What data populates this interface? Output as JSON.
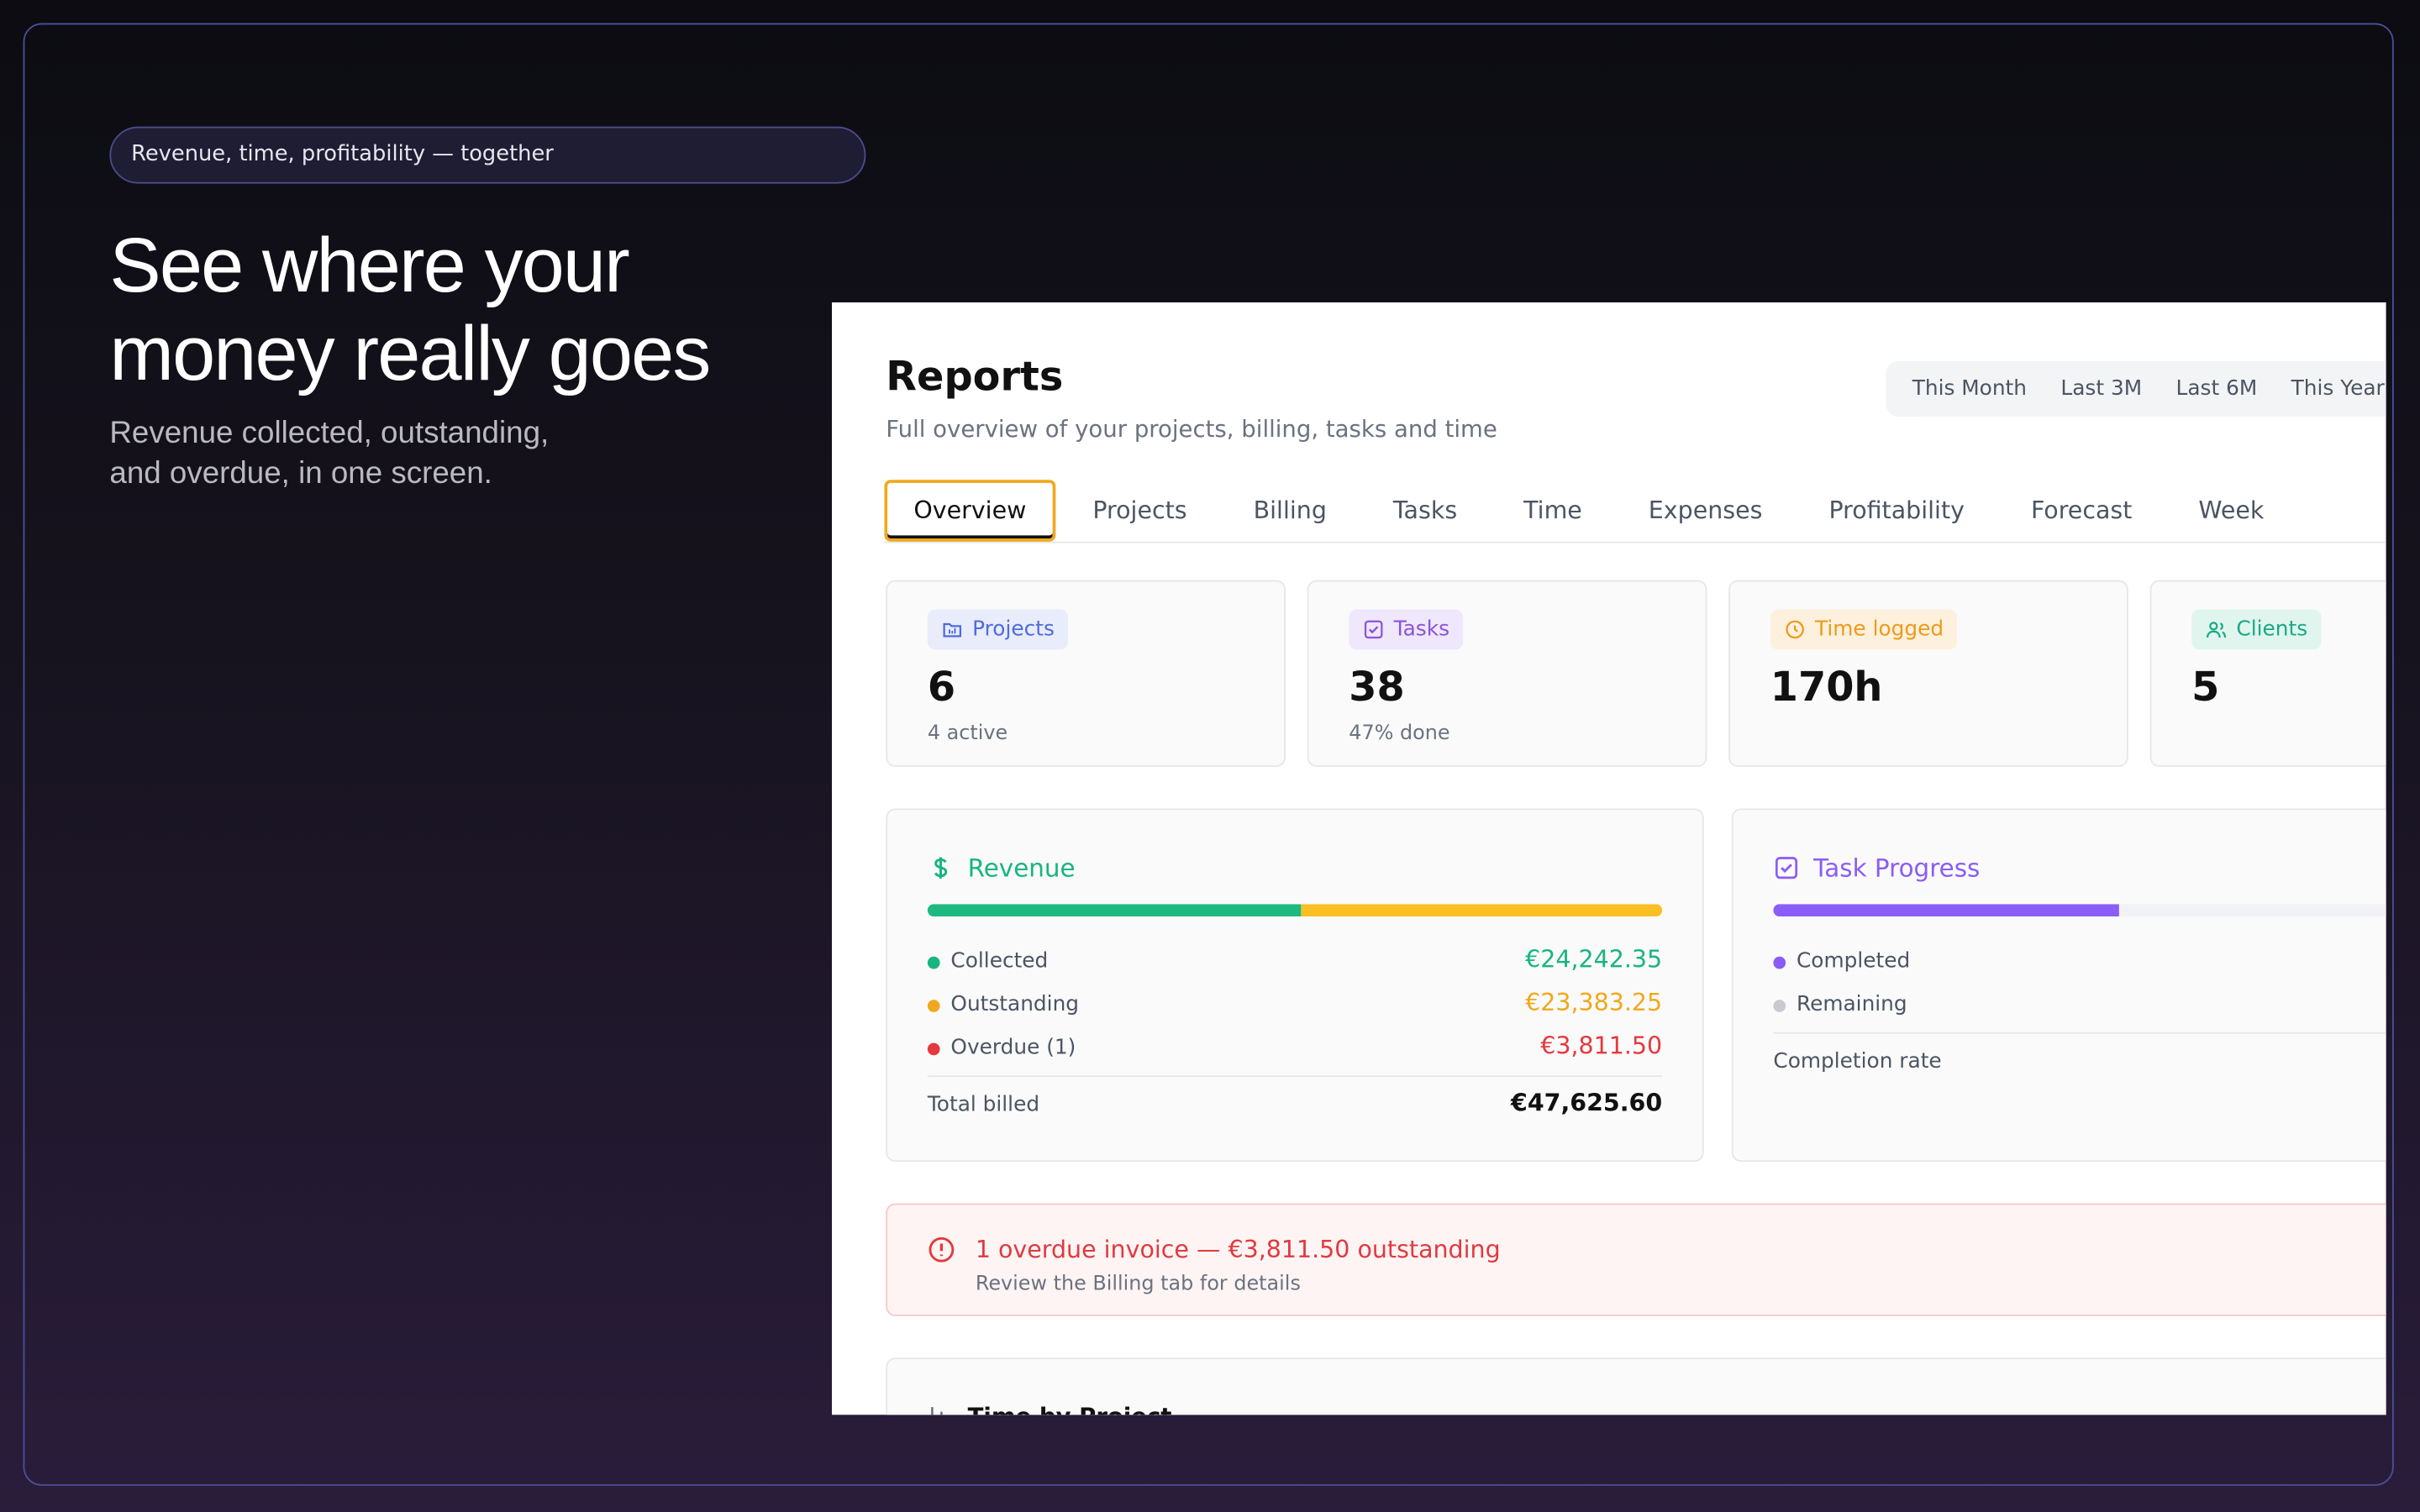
{
  "hero": {
    "badge": "Revenue, time, profitability — together",
    "headline_lines": [
      "See where your",
      "money really goes"
    ],
    "subtitle_lines": [
      "Revenue collected, outstanding,",
      "and overdue, in one screen."
    ]
  },
  "app": {
    "title": "Reports",
    "subtitle": "Full overview of your projects, billing, tasks and time",
    "ranges": [
      "This Month",
      "Last 3M",
      "Last 6M",
      "This Year"
    ],
    "tabs": [
      "Overview",
      "Projects",
      "Billing",
      "Tasks",
      "Time",
      "Expenses",
      "Profitability",
      "Forecast",
      "Week"
    ],
    "active_tab": 0,
    "stats": [
      {
        "label": "Projects",
        "value": "6",
        "note": "4 active",
        "color": "#4f6bdc",
        "bg": "#e8ecfb"
      },
      {
        "label": "Tasks",
        "value": "38",
        "note": "47% done",
        "color": "#8a55d8",
        "bg": "#efe7fb"
      },
      {
        "label": "Time logged",
        "value": "170h",
        "color": "#ef9a1a",
        "bg": "#fdf1de"
      },
      {
        "label": "Clients",
        "value": "5",
        "color": "#1aa987",
        "bg": "#e0f5ee"
      }
    ],
    "revenue": {
      "title": "Revenue",
      "rows": [
        {
          "label": "Collected",
          "amount": "€24,242.35",
          "color": "#18b57e"
        },
        {
          "label": "Outstanding",
          "amount": "€23,383.25",
          "color": "#f0a81c"
        },
        {
          "label": "Overdue (1)",
          "amount": "€3,811.50",
          "color": "#e5393d"
        }
      ],
      "total_label": "Total billed",
      "total_amount": "€47,625.60",
      "bar_colors": [
        "#1db980",
        "#fbbf24"
      ]
    },
    "task_progress": {
      "title": "Task Progress",
      "rows": [
        {
          "label": "Completed",
          "color": "#8b5cf6"
        },
        {
          "label": "Remaining",
          "color": "#c8cad0"
        }
      ],
      "footer": "Completion rate"
    },
    "alert": {
      "title": "1 overdue invoice — €3,811.50 outstanding",
      "detail": "Review the Billing tab for details"
    },
    "time_by_project": {
      "title": "Time by Project"
    }
  }
}
